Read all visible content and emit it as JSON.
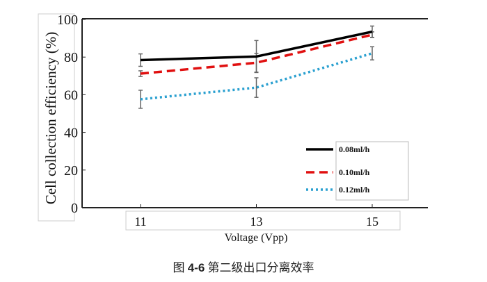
{
  "chart_data": {
    "type": "line",
    "title": "",
    "xlabel": "Voltage (Vpp)",
    "ylabel": "Cell collection efficiency (%)",
    "x": [
      11,
      13,
      15
    ],
    "x_ticks": [
      "11",
      "13",
      "15"
    ],
    "y_ticks": [
      "0",
      "20",
      "40",
      "60",
      "80",
      "100"
    ],
    "xlim": [
      10,
      16
    ],
    "ylim": [
      0,
      100
    ],
    "grid": false,
    "legend_position": "bottom-right",
    "series": [
      {
        "name": "0.08ml/h",
        "values": [
          78.4,
          80.3,
          93.5
        ],
        "error": [
          3.3,
          8.5,
          3
        ],
        "color": "#000000",
        "style": "solid"
      },
      {
        "name": "0.10ml/h",
        "values": [
          71.2,
          77,
          91.9
        ],
        "error": [
          1.5,
          5,
          1.5
        ],
        "color": "#e01010",
        "style": "dashed"
      },
      {
        "name": "0.12ml/h",
        "values": [
          57.6,
          63.8,
          82
        ],
        "error": [
          4.8,
          5.2,
          3.5
        ],
        "color": "#2aa0d0",
        "style": "dotted"
      }
    ]
  },
  "caption": {
    "prefix": "图 ",
    "number": "4-6",
    "text": " 第二级出口分离效率"
  }
}
